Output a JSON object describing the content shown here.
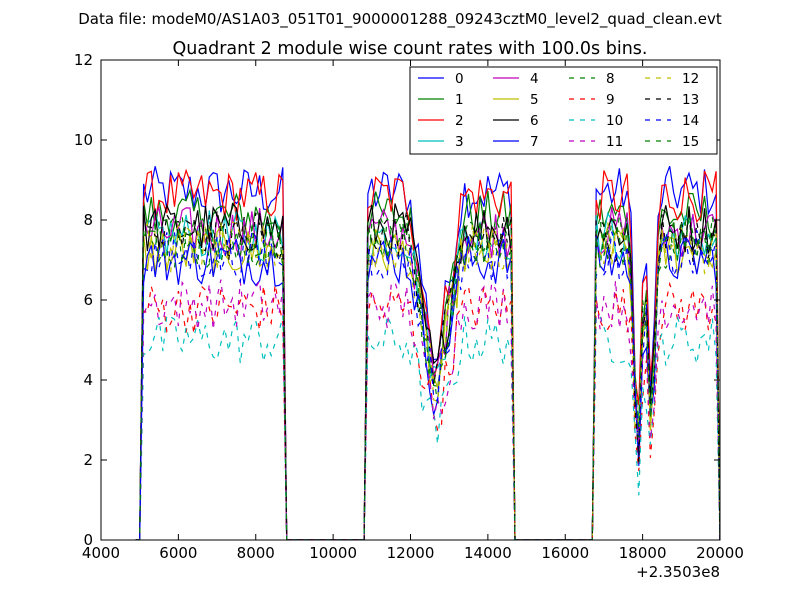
{
  "suptitle": "Data file: modeM0/AS1A03_051T01_9000001288_09243cztM0_level2_quad_clean.evt",
  "chart_data": {
    "type": "line",
    "title": "Quadrant 2 module wise count rates with 100.0s bins.",
    "xlabel": "",
    "ylabel": "",
    "x_offset_label": "+2.3503e8",
    "xlim": [
      4000,
      20000
    ],
    "ylim": [
      0,
      12
    ],
    "xticks": [
      "4000",
      "6000",
      "8000",
      "10000",
      "12000",
      "14000",
      "16000",
      "18000",
      "20000"
    ],
    "yticks": [
      "0",
      "2",
      "4",
      "6",
      "8",
      "10",
      "12"
    ],
    "grid": false,
    "legend_position": "top-right",
    "segments": [
      {
        "start": 5100,
        "end": 8700
      },
      {
        "start": 10900,
        "end": 14600
      },
      {
        "start": 16800,
        "end": 19900
      }
    ],
    "dip_times": [
      12650,
      17870,
      18230
    ],
    "series": [
      {
        "name": "0",
        "color": "#0000ff",
        "dashed": false,
        "level": 8.7
      },
      {
        "name": "1",
        "color": "#008000",
        "dashed": false,
        "level": 8.1
      },
      {
        "name": "2",
        "color": "#ff0000",
        "dashed": false,
        "level": 8.6
      },
      {
        "name": "3",
        "color": "#00bfbf",
        "dashed": false,
        "level": 7.6
      },
      {
        "name": "4",
        "color": "#bf00bf",
        "dashed": false,
        "level": 7.7
      },
      {
        "name": "5",
        "color": "#bfbf00",
        "dashed": false,
        "level": 7.2
      },
      {
        "name": "6",
        "color": "#000000",
        "dashed": false,
        "level": 7.8
      },
      {
        "name": "7",
        "color": "#0000ff",
        "dashed": false,
        "level": 7.0
      },
      {
        "name": "8",
        "color": "#008000",
        "dashed": true,
        "level": 7.4
      },
      {
        "name": "9",
        "color": "#ff0000",
        "dashed": true,
        "level": 5.8
      },
      {
        "name": "10",
        "color": "#00bfbf",
        "dashed": true,
        "level": 5.0
      },
      {
        "name": "11",
        "color": "#bf00bf",
        "dashed": true,
        "level": 5.9
      },
      {
        "name": "12",
        "color": "#bfbf00",
        "dashed": true,
        "level": 7.3
      },
      {
        "name": "13",
        "color": "#000000",
        "dashed": true,
        "level": 7.6
      },
      {
        "name": "14",
        "color": "#0000ff",
        "dashed": true,
        "level": 7.1
      },
      {
        "name": "15",
        "color": "#008000",
        "dashed": true,
        "level": 7.5
      }
    ]
  }
}
